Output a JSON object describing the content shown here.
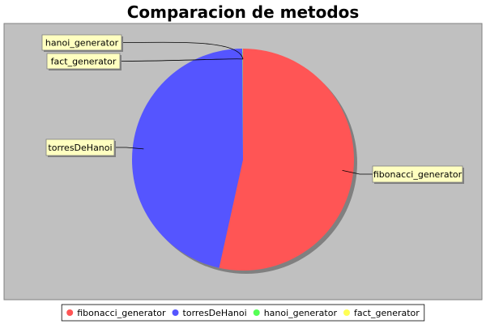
{
  "chart_data": {
    "type": "pie",
    "title": "Comparacion de metodos",
    "slices": [
      {
        "label": "fibonacci_generator",
        "value": 53.5,
        "color": "#ff5555"
      },
      {
        "label": "torresDeHanoi",
        "value": 46.5,
        "color": "#5555ff"
      },
      {
        "label": "hanoi_generator",
        "value": 0.04,
        "color": "#55ff55"
      },
      {
        "label": "fact_generator",
        "value": 0.04,
        "color": "#ffff55"
      }
    ],
    "legend_position": "bottom",
    "plot_background": "#c0c0c0"
  }
}
